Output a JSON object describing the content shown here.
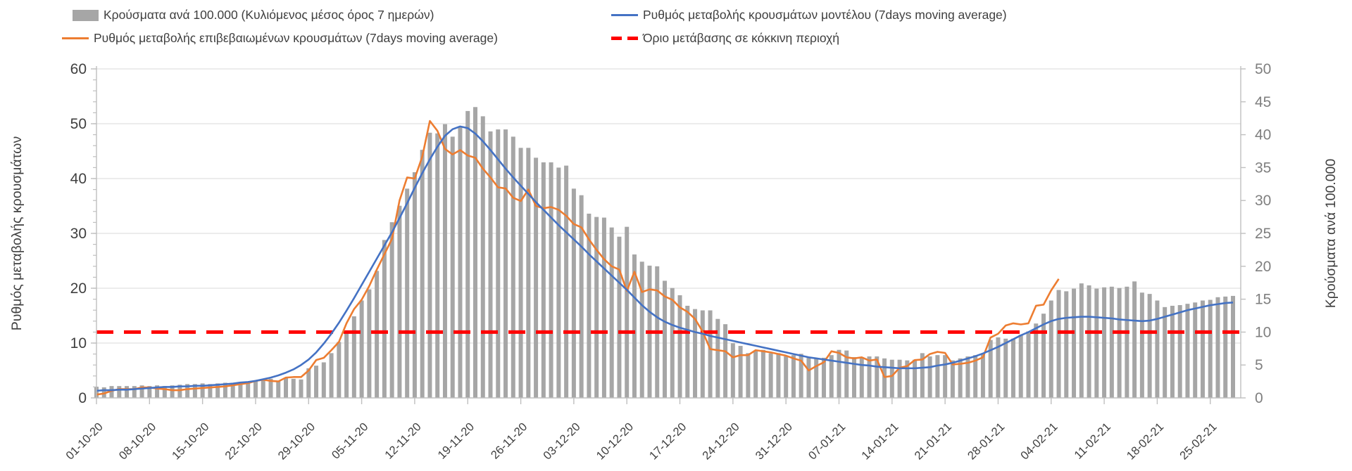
{
  "chart_data": {
    "type": "bar",
    "title": "",
    "legend_position": "top",
    "grid": "horizontal",
    "start_date": "01-10-20",
    "end_date": "28-02-21",
    "x_tick_labels": [
      "01-10-20",
      "08-10-20",
      "15-10-20",
      "22-10-20",
      "29-10-20",
      "05-11-20",
      "12-11-20",
      "19-11-20",
      "26-11-20",
      "03-12-20",
      "10-12-20",
      "17-12-20",
      "24-12-20",
      "31-12-20",
      "07-01-21",
      "14-01-21",
      "21-01-21",
      "28-01-21",
      "04-02-21",
      "11-02-21",
      "18-02-21",
      "25-02-21"
    ],
    "left_axis": {
      "title": "Ρυθμός μεταβολής κρουσμάτων",
      "min": 0,
      "max": 60,
      "tick_step": 10,
      "minor_step": 2
    },
    "right_axis": {
      "title": "Κρούσματα ανά 100.000",
      "min": 0,
      "max": 50,
      "tick_step": 5
    },
    "colors": {
      "bars": "#a6a6a6",
      "confirmed_line": "#ed7d31",
      "model_line": "#4472c4",
      "threshold": "#ff0000",
      "grid": "#d9d9d9",
      "axis": "#bfbfbf",
      "label_dark": "#3f3f3f",
      "label_gray": "#7f7f7f"
    },
    "series": [
      {
        "name": "Κρούσματα ανά 100.000 (Κυλιόμενος μέσος όρος 7 ημερών)",
        "type": "bar",
        "axis": "right",
        "values": [
          1.7,
          1.6,
          1.8,
          1.8,
          1.8,
          1.8,
          1.9,
          1.8,
          1.9,
          1.8,
          1.9,
          2.0,
          2.1,
          2.1,
          2.2,
          2.1,
          2.2,
          2.3,
          2.3,
          2.3,
          2.4,
          2.6,
          2.8,
          2.9,
          2.6,
          3.1,
          2.9,
          2.8,
          4.5,
          4.9,
          5.4,
          6.8,
          8.5,
          9.9,
          12.4,
          14.8,
          16.5,
          19.3,
          24.0,
          26.7,
          29.2,
          31.8,
          34.3,
          37.7,
          40.3,
          40.2,
          41.6,
          39.7,
          41.2,
          43.6,
          44.2,
          42.8,
          40.5,
          40.8,
          40.8,
          39.7,
          38.0,
          38.0,
          36.5,
          35.8,
          35.8,
          35.0,
          35.3,
          31.8,
          30.8,
          28.0,
          27.5,
          27.4,
          25.9,
          24.5,
          26.0,
          21.8,
          20.7,
          20.1,
          20.0,
          17.8,
          16.7,
          15.6,
          14.0,
          13.5,
          13.3,
          13.3,
          12.0,
          11.2,
          8.3,
          7.9,
          6.8,
          7.1,
          7.3,
          6.8,
          6.8,
          6.3,
          6.5,
          6.7,
          6.2,
          6.0,
          6.1,
          6.5,
          7.3,
          7.2,
          6.2,
          6.2,
          6.3,
          6.3,
          6.0,
          5.8,
          5.8,
          5.7,
          5.8,
          6.8,
          6.3,
          6.5,
          6.5,
          5.7,
          6.0,
          6.3,
          6.5,
          6.7,
          8.8,
          9.2,
          9.0,
          9.0,
          9.6,
          10.1,
          11.3,
          12.8,
          14.8,
          16.4,
          16.2,
          16.6,
          17.4,
          17.1,
          16.6,
          16.8,
          16.9,
          16.7,
          16.9,
          17.7,
          16.0,
          15.8,
          14.8,
          13.8,
          14.0,
          14.1,
          14.3,
          14.5,
          14.8,
          14.9,
          15.3,
          15.4,
          15.5
        ]
      },
      {
        "name": "Ρυθμός μεταβολής επιβεβαιωμένων κρουσμάτων (7days moving average)",
        "type": "line",
        "axis": "left",
        "values": [
          0.6,
          0.8,
          1.3,
          1.6,
          1.6,
          1.6,
          1.9,
          1.9,
          1.7,
          1.6,
          1.4,
          1.4,
          1.6,
          1.7,
          1.8,
          1.9,
          2.0,
          2.1,
          2.3,
          2.5,
          2.7,
          3.1,
          3.3,
          3.1,
          3.0,
          3.7,
          3.8,
          3.8,
          5.0,
          6.9,
          7.3,
          8.7,
          10.2,
          13.6,
          16.2,
          17.9,
          20.4,
          23.4,
          26.2,
          29.0,
          36.0,
          40.2,
          40.0,
          44.0,
          50.5,
          48.7,
          45.4,
          44.4,
          45.2,
          44.2,
          43.8,
          41.8,
          40.2,
          38.4,
          38.2,
          36.5,
          35.9,
          38.0,
          35.0,
          34.6,
          34.8,
          34.3,
          33.2,
          31.7,
          31.1,
          28.9,
          27.0,
          25.3,
          24.0,
          23.4,
          19.5,
          23.0,
          19.3,
          19.8,
          19.6,
          18.5,
          17.9,
          16.5,
          15.7,
          14.4,
          12.1,
          8.9,
          8.7,
          8.5,
          7.4,
          7.8,
          7.8,
          8.7,
          8.5,
          8.3,
          8.0,
          7.7,
          7.2,
          6.8,
          5.0,
          5.8,
          6.5,
          8.5,
          8.2,
          7.4,
          7.2,
          7.4,
          6.8,
          7.0,
          3.8,
          4.0,
          5.5,
          5.8,
          6.9,
          7.0,
          8.0,
          8.4,
          8.2,
          6.1,
          6.2,
          6.4,
          6.8,
          7.4,
          11.0,
          11.7,
          13.2,
          13.6,
          13.4,
          13.6,
          16.8,
          17.0,
          19.6,
          21.7
        ]
      },
      {
        "name": "Ρυθμός μεταβολής κρουσμάτων μοντέλου (7days moving average)",
        "type": "line",
        "axis": "left",
        "values": [
          1.3,
          1.4,
          1.4,
          1.5,
          1.5,
          1.6,
          1.7,
          1.8,
          1.9,
          2.0,
          2.0,
          2.1,
          2.1,
          2.2,
          2.2,
          2.3,
          2.4,
          2.5,
          2.6,
          2.8,
          2.9,
          3.1,
          3.4,
          3.7,
          4.1,
          4.6,
          5.2,
          6.0,
          7.0,
          8.3,
          9.9,
          11.7,
          13.7,
          15.9,
          18.2,
          20.6,
          23.0,
          25.4,
          27.8,
          30.2,
          32.8,
          35.5,
          38.3,
          41.0,
          43.5,
          45.8,
          47.8,
          49.0,
          49.5,
          49.2,
          48.2,
          46.8,
          45.2,
          43.5,
          41.8,
          40.2,
          38.7,
          37.2,
          35.7,
          34.3,
          32.9,
          31.5,
          30.2,
          28.9,
          27.6,
          26.2,
          24.9,
          23.6,
          22.3,
          21.0,
          19.7,
          18.3,
          16.9,
          15.7,
          14.7,
          13.9,
          13.3,
          12.8,
          12.4,
          12.0,
          11.7,
          11.3,
          11.0,
          10.7,
          10.4,
          10.1,
          9.8,
          9.5,
          9.2,
          8.9,
          8.6,
          8.3,
          8.0,
          7.7,
          7.4,
          7.2,
          7.0,
          6.8,
          6.6,
          6.4,
          6.2,
          6.0,
          5.9,
          5.7,
          5.6,
          5.5,
          5.4,
          5.4,
          5.4,
          5.5,
          5.6,
          5.9,
          6.1,
          6.4,
          6.8,
          7.2,
          7.6,
          8.1,
          8.7,
          9.3,
          10.0,
          10.7,
          11.4,
          12.0,
          12.7,
          13.4,
          14.0,
          14.4,
          14.6,
          14.7,
          14.8,
          14.8,
          14.7,
          14.6,
          14.5,
          14.3,
          14.2,
          14.1,
          14.0,
          14.1,
          14.4,
          14.8,
          15.2,
          15.6,
          16.0,
          16.3,
          16.6,
          16.9,
          17.1,
          17.3,
          17.4
        ]
      },
      {
        "name": "Όριο μετάβασης σε κόκκινη περιοχή",
        "type": "threshold",
        "axis": "right",
        "value": 10
      }
    ]
  }
}
